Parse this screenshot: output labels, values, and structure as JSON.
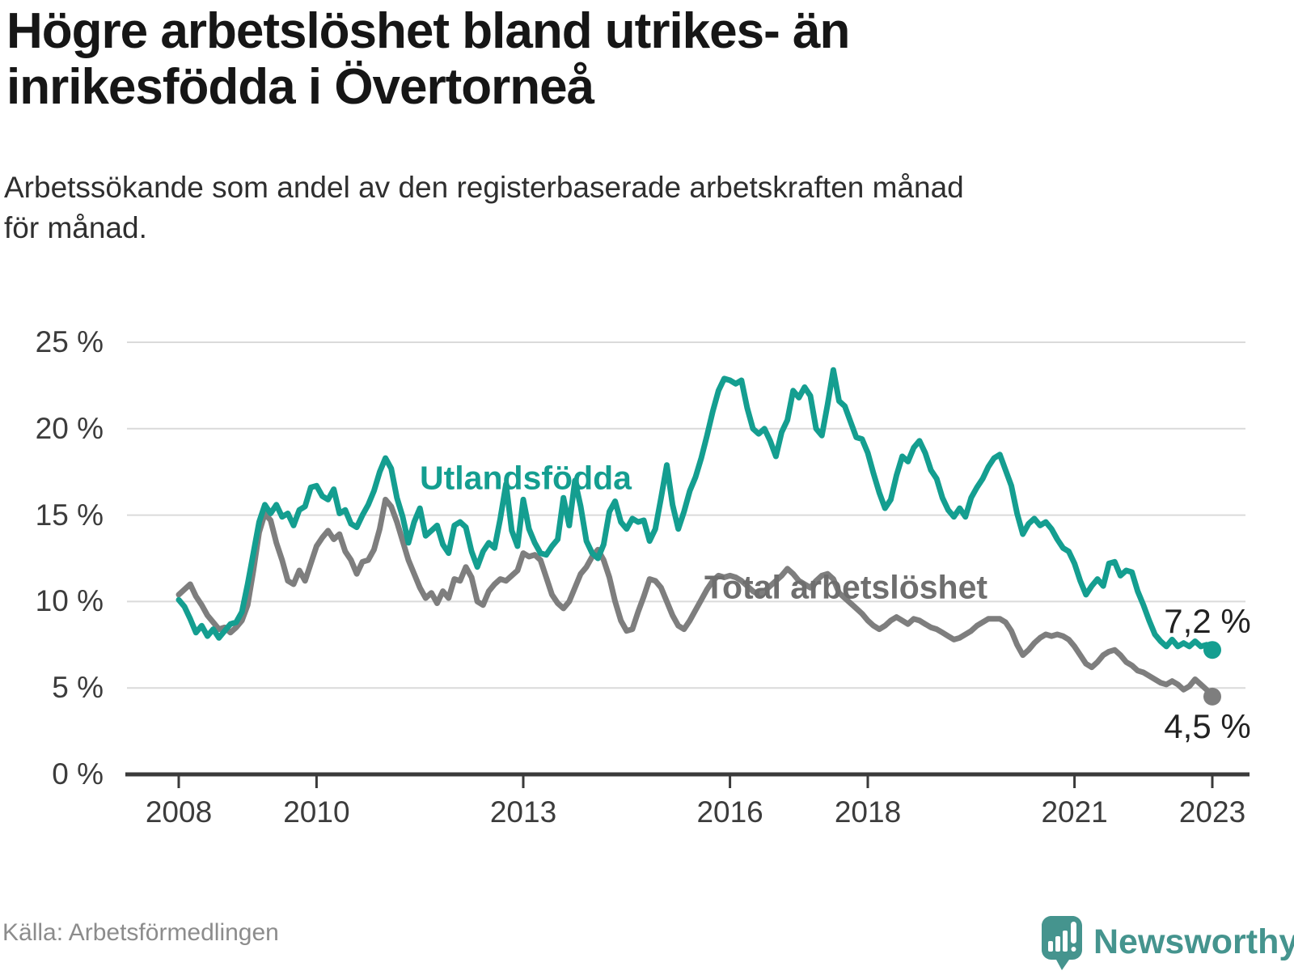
{
  "header": {
    "title_lines": [
      "Högre arbetslöshet bland utrikes- än",
      "inrikesfödda i Övertorneå"
    ],
    "subtitle_lines": [
      "Arbetssökande som andel av den registerbaserade arbetskraften månad",
      "för månad."
    ]
  },
  "footer": {
    "source": "Källa: Arbetsförmedlingen",
    "brand": "Newsworthy"
  },
  "colors": {
    "utlandsfodda": "#149e90",
    "total": "#7e7e7e",
    "total_label": "#6e6e6e",
    "grid": "#dadada",
    "axis": "#3a3a3a",
    "annotation_text": "#222222",
    "brand_teal": "#45948e"
  },
  "chart_data": {
    "type": "line",
    "unit": "%",
    "cadence": "monthly",
    "x_start_year": 2008,
    "x_end_label": "2023",
    "ylim": [
      0,
      25
    ],
    "grid": "horizontal",
    "y_ticks": [
      {
        "value": 0,
        "label": "0 %"
      },
      {
        "value": 5,
        "label": "5 %"
      },
      {
        "value": 10,
        "label": "10 %"
      },
      {
        "value": 15,
        "label": "15 %"
      },
      {
        "value": 20,
        "label": "20 %"
      },
      {
        "value": 25,
        "label": "25 %"
      }
    ],
    "x_ticks": [
      {
        "value": 2008,
        "label": "2008"
      },
      {
        "value": 2010,
        "label": "2010"
      },
      {
        "value": 2013,
        "label": "2013"
      },
      {
        "value": 2016,
        "label": "2016"
      },
      {
        "value": 2018,
        "label": "2018"
      },
      {
        "value": 2021,
        "label": "2021"
      },
      {
        "value": 2023,
        "label": "2023"
      }
    ],
    "series": [
      {
        "name": "Total arbetslöshet",
        "color": "#7e7e7e",
        "values": [
          10.4,
          10.7,
          11.0,
          10.3,
          9.8,
          9.2,
          8.8,
          8.4,
          8.5,
          8.2,
          8.5,
          8.9,
          9.8,
          11.8,
          14.0,
          15.1,
          14.7,
          13.4,
          12.4,
          11.2,
          11.0,
          11.8,
          11.2,
          12.2,
          13.2,
          13.7,
          14.1,
          13.6,
          13.9,
          12.9,
          12.4,
          11.6,
          12.3,
          12.4,
          13.0,
          14.2,
          15.9,
          15.5,
          14.6,
          13.5,
          12.4,
          11.6,
          10.8,
          10.2,
          10.5,
          9.9,
          10.6,
          10.2,
          11.3,
          11.2,
          12.0,
          11.4,
          10.0,
          9.8,
          10.6,
          11.0,
          11.3,
          11.2,
          11.5,
          11.8,
          12.8,
          12.6,
          12.7,
          12.4,
          11.4,
          10.4,
          9.9,
          9.6,
          10.0,
          10.8,
          11.6,
          12.0,
          12.6,
          13.0,
          12.4,
          11.4,
          10.0,
          8.9,
          8.3,
          8.4,
          9.4,
          10.3,
          11.3,
          11.2,
          10.8,
          10.0,
          9.2,
          8.6,
          8.4,
          8.9,
          9.5,
          10.1,
          10.7,
          11.2,
          11.5,
          11.4,
          11.5,
          11.4,
          11.2,
          10.9,
          10.6,
          10.4,
          10.6,
          10.9,
          11.2,
          11.5,
          11.9,
          11.6,
          11.2,
          11.0,
          10.8,
          11.2,
          11.5,
          11.6,
          11.3,
          10.5,
          10.2,
          9.9,
          9.6,
          9.3,
          8.9,
          8.6,
          8.4,
          8.6,
          8.9,
          9.1,
          8.9,
          8.7,
          9.0,
          8.9,
          8.7,
          8.5,
          8.4,
          8.2,
          8.0,
          7.8,
          7.9,
          8.1,
          8.3,
          8.6,
          8.8,
          9.0,
          9.0,
          9.0,
          8.8,
          8.3,
          7.5,
          6.9,
          7.2,
          7.6,
          7.9,
          8.1,
          8.0,
          8.1,
          8.0,
          7.8,
          7.4,
          6.9,
          6.4,
          6.2,
          6.5,
          6.9,
          7.1,
          7.2,
          6.9,
          6.5,
          6.3,
          6.0,
          5.9,
          5.7,
          5.5,
          5.3,
          5.2,
          5.4,
          5.2,
          4.9,
          5.1,
          5.5,
          5.2,
          4.9,
          4.5
        ]
      },
      {
        "name": "Utlandsfödda",
        "color": "#149e90",
        "values": [
          10.1,
          9.7,
          9.0,
          8.2,
          8.6,
          8.0,
          8.4,
          7.9,
          8.3,
          8.7,
          8.8,
          9.4,
          11.0,
          12.8,
          14.6,
          15.6,
          15.1,
          15.6,
          14.9,
          15.1,
          14.4,
          15.3,
          15.5,
          16.6,
          16.7,
          16.1,
          15.9,
          16.5,
          15.1,
          15.3,
          14.5,
          14.3,
          15.0,
          15.6,
          16.4,
          17.5,
          18.3,
          17.7,
          16.0,
          14.9,
          13.4,
          14.6,
          15.4,
          13.8,
          14.1,
          14.4,
          13.3,
          12.8,
          14.4,
          14.6,
          14.3,
          12.9,
          12.0,
          12.9,
          13.4,
          13.1,
          14.8,
          16.8,
          14.1,
          13.2,
          15.9,
          14.2,
          13.4,
          12.8,
          12.7,
          13.2,
          13.6,
          16.0,
          14.4,
          17.0,
          15.5,
          13.5,
          12.8,
          12.5,
          13.3,
          15.2,
          15.8,
          14.6,
          14.2,
          14.8,
          14.6,
          14.7,
          13.5,
          14.2,
          16.0,
          17.9,
          15.6,
          14.2,
          15.2,
          16.4,
          17.2,
          18.3,
          19.6,
          21.0,
          22.2,
          22.9,
          22.8,
          22.6,
          22.8,
          21.2,
          20.0,
          19.7,
          20.0,
          19.3,
          18.4,
          19.8,
          20.5,
          22.2,
          21.8,
          22.4,
          21.9,
          20.0,
          19.6,
          21.4,
          23.4,
          21.6,
          21.3,
          20.4,
          19.5,
          19.4,
          18.6,
          17.4,
          16.3,
          15.4,
          15.9,
          17.3,
          18.4,
          18.1,
          18.9,
          19.3,
          18.6,
          17.6,
          17.1,
          16.0,
          15.3,
          14.9,
          15.4,
          14.9,
          16.0,
          16.6,
          17.1,
          17.8,
          18.3,
          18.5,
          17.6,
          16.7,
          15.1,
          13.9,
          14.5,
          14.8,
          14.4,
          14.6,
          14.2,
          13.6,
          13.1,
          12.9,
          12.2,
          11.2,
          10.4,
          10.9,
          11.3,
          10.9,
          12.2,
          12.3,
          11.5,
          11.8,
          11.7,
          10.6,
          9.8,
          8.9,
          8.1,
          7.7,
          7.4,
          7.8,
          7.4,
          7.6,
          7.4,
          7.7,
          7.4,
          7.5,
          7.2
        ]
      }
    ],
    "annotations": [
      {
        "series": "Utlandsfödda",
        "label": "7,2 %",
        "value": 7.2
      },
      {
        "series": "Total arbetslöshet",
        "label": "4,5 %",
        "value": 4.5
      }
    ]
  }
}
